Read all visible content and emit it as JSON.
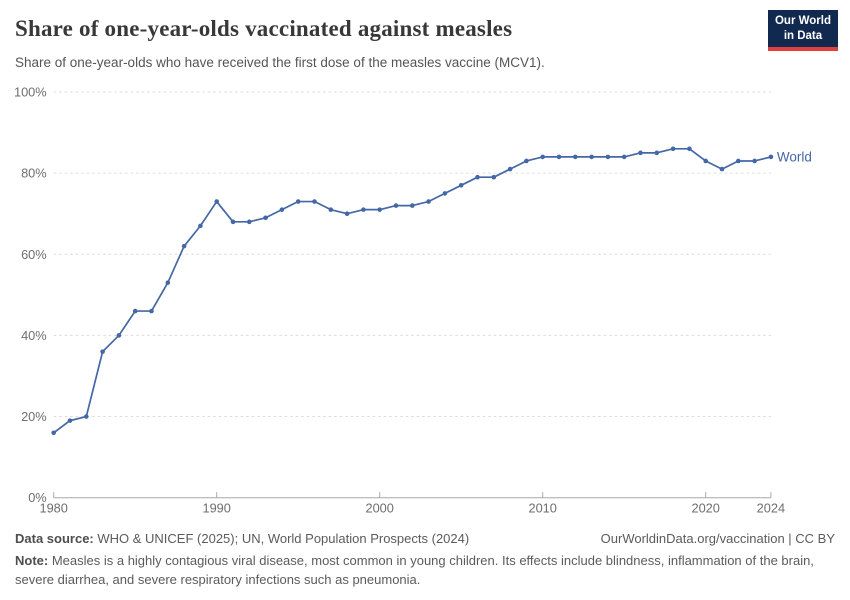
{
  "header": {
    "logo": {
      "line1": "Our World",
      "line2": "in Data"
    }
  },
  "chart_data": {
    "type": "line",
    "title": "Share of one-year-olds vaccinated against measles",
    "subtitle": "Share of one-year-olds who have received the first dose of the measles vaccine (MCV1).",
    "x": [
      1980,
      1981,
      1982,
      1983,
      1984,
      1985,
      1986,
      1987,
      1988,
      1989,
      1990,
      1991,
      1992,
      1993,
      1994,
      1995,
      1996,
      1997,
      1998,
      1999,
      2000,
      2001,
      2002,
      2003,
      2004,
      2005,
      2006,
      2007,
      2008,
      2009,
      2010,
      2011,
      2012,
      2013,
      2014,
      2015,
      2016,
      2017,
      2018,
      2019,
      2020,
      2021,
      2022,
      2023,
      2024
    ],
    "series": [
      {
        "name": "World",
        "color": "#4467a6",
        "values": [
          16,
          19,
          20,
          36,
          40,
          46,
          46,
          53,
          62,
          67,
          73,
          68,
          68,
          69,
          71,
          73,
          73,
          71,
          70,
          71,
          71,
          72,
          72,
          73,
          75,
          77,
          79,
          79,
          81,
          83,
          84,
          84,
          84,
          84,
          84,
          84,
          85,
          85,
          86,
          86,
          83,
          81,
          83,
          83,
          84
        ]
      }
    ],
    "xlabel": "",
    "ylabel": "",
    "ylim": [
      0,
      100
    ],
    "yticks": [
      0,
      20,
      40,
      60,
      80,
      100
    ],
    "ytick_suffix": "%",
    "xticks": [
      1980,
      1990,
      2000,
      2010,
      2020,
      2024
    ],
    "grid": "horizontal-dashed",
    "legend_position": "end-of-line-label"
  },
  "footer": {
    "datasource_label": "Data source:",
    "datasource_text": " WHO & UNICEF (2025); UN, World Population Prospects (2024)",
    "link_text": "OurWorldinData.org/vaccination | CC BY",
    "note_label": "Note:",
    "note_text": " Measles is a highly contagious viral disease, most common in young children. Its effects include blindness, inflammation of the brain, severe diarrhea, and severe respiratory infections such as pneumonia."
  },
  "colors": {
    "line": "#4467a6",
    "grid": "#dcdcdc",
    "axis": "#a8a8a8",
    "tick_text": "#6e6e6e",
    "logo_bg": "#12294f",
    "logo_bar": "#e0413c"
  }
}
